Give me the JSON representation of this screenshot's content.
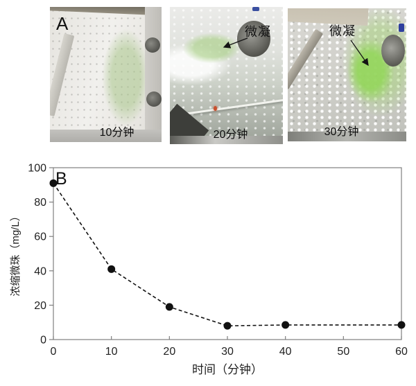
{
  "figure": {
    "panel_a": {
      "label": "A",
      "photos": [
        {
          "id": "10min",
          "time_label": "10分钟",
          "annotation": ""
        },
        {
          "id": "20min",
          "time_label": "20分钟",
          "annotation": "微凝"
        },
        {
          "id": "30min",
          "time_label": "30分钟",
          "annotation": "微凝"
        }
      ]
    },
    "panel_b": {
      "label": "B"
    }
  },
  "chart_data": {
    "type": "line",
    "title": "",
    "x": [
      0,
      10,
      20,
      30,
      40,
      60
    ],
    "y": [
      91,
      41,
      19,
      8,
      8.5,
      8.5
    ],
    "xlabel": "时间（分钟）",
    "ylabel": "浓缩微珠（mg/L）",
    "xlim": [
      0,
      60
    ],
    "ylim": [
      0,
      100
    ],
    "xticks": [
      0,
      10,
      20,
      30,
      40,
      50,
      60
    ],
    "yticks": [
      0,
      20,
      40,
      60,
      80,
      100
    ],
    "grid": false,
    "legend": "none",
    "line_style": "dashed",
    "marker": "filled-circle",
    "line_color": "#111111",
    "marker_color": "#111111",
    "axis_color": "#7f7f7f",
    "text_color": "#1f1f1f"
  }
}
